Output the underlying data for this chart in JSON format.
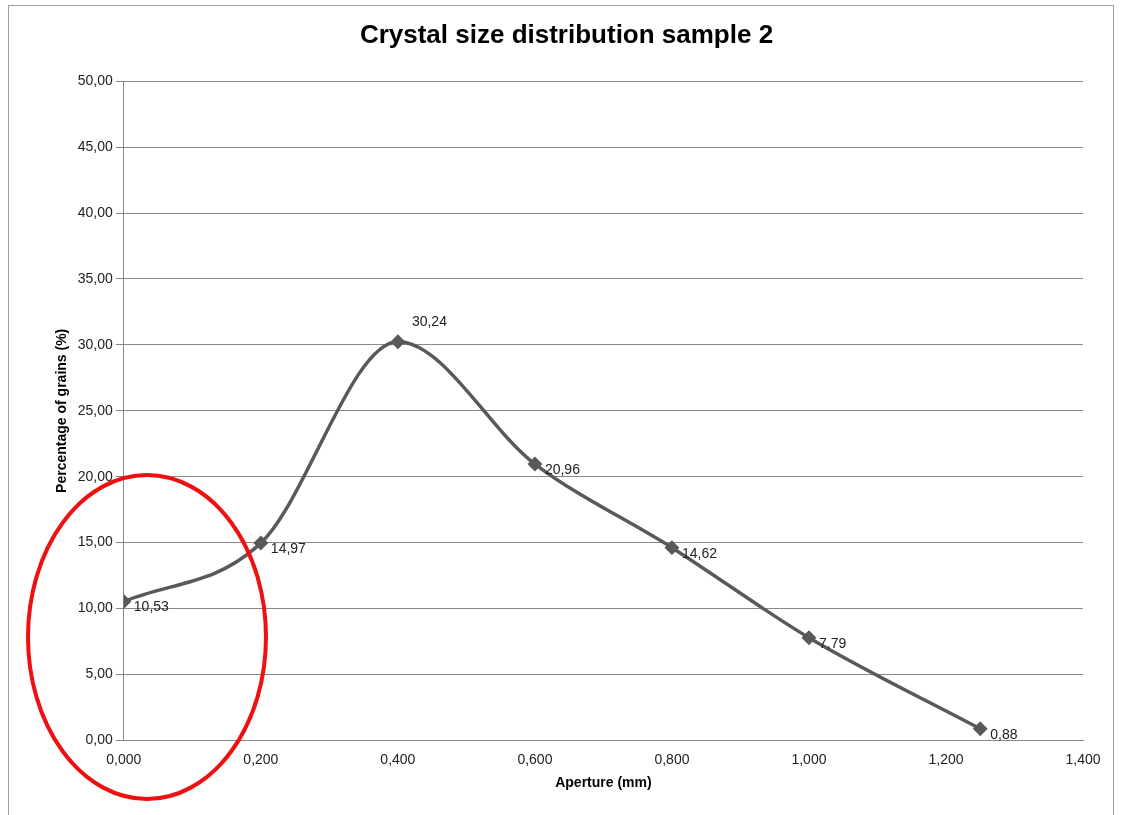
{
  "chart_data": {
    "type": "line",
    "title": "Crystal size distribution sample 2",
    "xlabel": "Aperture (mm)",
    "ylabel": "Percentage of grains (%)",
    "x": [
      0,
      0.2,
      0.4,
      0.6,
      0.8,
      1.0,
      1.25
    ],
    "series": [
      {
        "color": "#595959",
        "values": [
          10.53,
          14.97,
          30.24,
          20.96,
          14.62,
          7.79,
          0.88
        ],
        "value_labels": [
          "10,53",
          "14,97",
          "30,24",
          "20,96",
          "14,62",
          "7,79",
          "0,88"
        ]
      }
    ],
    "xlim": [
      0,
      1.4
    ],
    "xticks": [
      {
        "value": 0,
        "label": "0,000"
      },
      {
        "value": 0.2,
        "label": "0,200"
      },
      {
        "value": 0.4,
        "label": "0,400"
      },
      {
        "value": 0.6,
        "label": "0,600"
      },
      {
        "value": 0.8,
        "label": "0,800"
      },
      {
        "value": 1.0,
        "label": "1,000"
      },
      {
        "value": 1.2,
        "label": "1,200"
      },
      {
        "value": 1.4,
        "label": "1,400"
      }
    ],
    "ylim": [
      0,
      50
    ],
    "yticks": [
      {
        "value": 0,
        "label": "0,00"
      },
      {
        "value": 5,
        "label": "5,00"
      },
      {
        "value": 10,
        "label": "10,00"
      },
      {
        "value": 15,
        "label": "15,00"
      },
      {
        "value": 20,
        "label": "20,00"
      },
      {
        "value": 25,
        "label": "25,00"
      },
      {
        "value": 30,
        "label": "30,00"
      },
      {
        "value": 35,
        "label": "35,00"
      },
      {
        "value": 40,
        "label": "40,00"
      },
      {
        "value": 45,
        "label": "45,00"
      },
      {
        "value": 50,
        "label": "50,00"
      }
    ],
    "grid": "y",
    "legend": false,
    "marker": "diamond",
    "line_style": "solid"
  }
}
